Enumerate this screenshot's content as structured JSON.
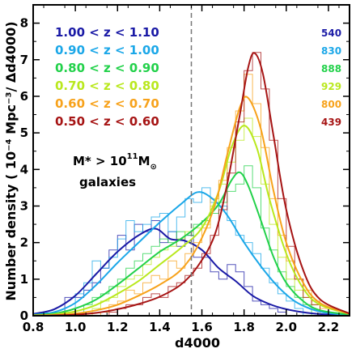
{
  "chart_data": {
    "type": "line",
    "xlabel": "d4000",
    "ylabel": "Number density ( 10⁻⁴ Mpc⁻³/ Δd4000)",
    "xlim": [
      0.8,
      2.3
    ],
    "ylim": [
      0,
      8.5
    ],
    "xticks": [
      "0.8",
      "1.0",
      "1.2",
      "1.4",
      "1.6",
      "1.8",
      "2.0",
      "2.2"
    ],
    "yticks": [
      "0",
      "1",
      "2",
      "3",
      "4",
      "5",
      "6",
      "7",
      "8"
    ],
    "vline_x": 1.55,
    "annotation": {
      "line1_prefix": "M* > 10",
      "line1_exp": "11",
      "line1_suffix": "M",
      "line1_sun": "⊙",
      "line2": "galaxies"
    },
    "series": [
      {
        "name": "1.00 < z < 1.10",
        "count": "540",
        "color": "#1a1aa6",
        "x": [
          0.8,
          0.9,
          1.0,
          1.1,
          1.2,
          1.3,
          1.38,
          1.45,
          1.52,
          1.6,
          1.68,
          1.76,
          1.84,
          1.92,
          2.0,
          2.1,
          2.2,
          2.3
        ],
        "y": [
          0.05,
          0.18,
          0.55,
          1.15,
          1.75,
          2.2,
          2.38,
          2.1,
          2.05,
          1.8,
          1.3,
          0.95,
          0.55,
          0.32,
          0.18,
          0.08,
          0.03,
          0.01
        ],
        "hx": [
          0.95,
          1.0,
          1.04,
          1.08,
          1.12,
          1.16,
          1.2,
          1.24,
          1.28,
          1.32,
          1.36,
          1.4,
          1.44,
          1.48,
          1.52,
          1.56,
          1.6,
          1.64,
          1.68,
          1.72,
          1.76,
          1.8,
          1.84,
          1.88,
          1.92,
          1.96,
          2.0
        ],
        "hy": [
          0.5,
          0.5,
          0.7,
          0.9,
          1.3,
          1.8,
          2.2,
          1.8,
          2.5,
          2.3,
          2.6,
          2.0,
          2.3,
          1.9,
          2.2,
          1.6,
          1.6,
          1.2,
          1.0,
          1.4,
          1.2,
          0.8,
          0.4,
          0.3,
          0.2,
          0.1,
          0.0
        ]
      },
      {
        "name": "0.90 < z < 1.00",
        "count": "830",
        "color": "#1ba7e8",
        "x": [
          0.8,
          0.9,
          1.0,
          1.1,
          1.2,
          1.3,
          1.4,
          1.5,
          1.58,
          1.65,
          1.72,
          1.8,
          1.88,
          1.96,
          2.04,
          2.12,
          2.2,
          2.3
        ],
        "y": [
          0.03,
          0.1,
          0.35,
          0.85,
          1.45,
          2.0,
          2.55,
          3.05,
          3.38,
          3.2,
          2.75,
          2.0,
          1.35,
          0.8,
          0.4,
          0.18,
          0.07,
          0.02
        ],
        "hx": [
          1.0,
          1.04,
          1.08,
          1.12,
          1.16,
          1.2,
          1.24,
          1.28,
          1.32,
          1.36,
          1.4,
          1.44,
          1.48,
          1.52,
          1.56,
          1.6,
          1.64,
          1.68,
          1.72,
          1.76,
          1.8,
          1.84,
          1.88,
          1.92,
          1.96,
          2.0,
          2.04
        ],
        "hy": [
          0.6,
          0.9,
          1.5,
          1.3,
          1.6,
          2.1,
          2.6,
          2.3,
          2.5,
          2.7,
          2.8,
          2.3,
          2.7,
          3.2,
          3.1,
          3.5,
          3.1,
          3.0,
          2.6,
          2.2,
          2.0,
          1.7,
          1.3,
          0.9,
          0.6,
          0.4,
          0.2
        ]
      },
      {
        "name": "0.80 < z < 0.90",
        "count": "888",
        "color": "#22d14a",
        "x": [
          0.8,
          0.9,
          1.0,
          1.1,
          1.2,
          1.3,
          1.4,
          1.5,
          1.6,
          1.68,
          1.74,
          1.78,
          1.82,
          1.88,
          1.94,
          2.0,
          2.08,
          2.16,
          2.3
        ],
        "y": [
          0.02,
          0.06,
          0.2,
          0.45,
          0.85,
          1.3,
          1.75,
          2.1,
          2.55,
          3.05,
          3.7,
          3.92,
          3.55,
          2.6,
          1.6,
          0.9,
          0.4,
          0.15,
          0.03
        ],
        "hx": [
          1.04,
          1.08,
          1.12,
          1.16,
          1.2,
          1.24,
          1.28,
          1.32,
          1.36,
          1.4,
          1.44,
          1.48,
          1.52,
          1.56,
          1.6,
          1.64,
          1.68,
          1.72,
          1.76,
          1.8,
          1.84,
          1.88,
          1.92,
          1.96,
          2.0,
          2.04,
          2.08
        ],
        "hy": [
          0.3,
          0.5,
          0.6,
          0.8,
          1.0,
          1.3,
          1.5,
          1.7,
          1.9,
          2.1,
          2.0,
          2.3,
          2.2,
          2.5,
          2.6,
          2.8,
          3.1,
          3.4,
          3.6,
          4.1,
          3.5,
          2.4,
          1.8,
          1.2,
          0.8,
          0.5,
          0.3
        ]
      },
      {
        "name": "0.70 < z < 0.80",
        "count": "929",
        "color": "#b9e81d",
        "x": [
          0.8,
          0.9,
          1.0,
          1.1,
          1.2,
          1.3,
          1.4,
          1.5,
          1.6,
          1.68,
          1.74,
          1.8,
          1.86,
          1.92,
          2.0,
          2.08,
          2.16,
          2.3
        ],
        "y": [
          0.01,
          0.04,
          0.12,
          0.3,
          0.6,
          0.95,
          1.4,
          1.85,
          2.4,
          3.4,
          4.6,
          5.2,
          4.6,
          3.2,
          1.7,
          0.75,
          0.3,
          0.05
        ],
        "hx": [
          1.08,
          1.12,
          1.16,
          1.2,
          1.24,
          1.28,
          1.32,
          1.36,
          1.4,
          1.44,
          1.48,
          1.52,
          1.56,
          1.6,
          1.64,
          1.68,
          1.72,
          1.76,
          1.8,
          1.84,
          1.88,
          1.92,
          1.96,
          2.0,
          2.04,
          2.08,
          2.12
        ],
        "hy": [
          0.2,
          0.4,
          0.5,
          0.8,
          1.0,
          1.1,
          1.4,
          1.6,
          1.8,
          1.9,
          2.1,
          2.3,
          2.4,
          2.5,
          3.0,
          3.6,
          4.2,
          4.8,
          5.4,
          4.9,
          3.6,
          2.5,
          1.6,
          1.0,
          0.7,
          0.5,
          0.3
        ]
      },
      {
        "name": "0.60 < z < 0.70",
        "count": "800",
        "color": "#f7a21b",
        "x": [
          0.8,
          0.9,
          1.0,
          1.1,
          1.2,
          1.3,
          1.4,
          1.5,
          1.58,
          1.66,
          1.72,
          1.78,
          1.82,
          1.88,
          1.94,
          2.0,
          2.08,
          2.16,
          2.3
        ],
        "y": [
          0.01,
          0.02,
          0.06,
          0.15,
          0.3,
          0.55,
          0.85,
          1.25,
          1.9,
          3.0,
          4.4,
          5.7,
          5.95,
          5.1,
          3.4,
          2.0,
          0.9,
          0.35,
          0.05
        ],
        "hx": [
          1.12,
          1.16,
          1.2,
          1.24,
          1.28,
          1.32,
          1.36,
          1.4,
          1.44,
          1.48,
          1.52,
          1.56,
          1.6,
          1.64,
          1.68,
          1.72,
          1.76,
          1.8,
          1.84,
          1.88,
          1.92,
          1.96,
          2.0,
          2.04,
          2.08,
          2.12,
          2.16
        ],
        "hy": [
          0.1,
          0.3,
          0.4,
          0.7,
          0.6,
          0.9,
          1.1,
          1.0,
          1.5,
          1.3,
          1.7,
          2.0,
          2.4,
          3.2,
          3.7,
          4.6,
          5.6,
          6.6,
          5.8,
          4.6,
          3.2,
          2.2,
          1.5,
          1.0,
          0.7,
          0.4,
          0.2
        ]
      },
      {
        "name": "0.50 < z < 0.60",
        "count": "439",
        "color": "#a61414",
        "x": [
          0.8,
          0.9,
          1.0,
          1.1,
          1.2,
          1.3,
          1.4,
          1.5,
          1.58,
          1.66,
          1.72,
          1.78,
          1.82,
          1.85,
          1.89,
          1.94,
          2.0,
          2.08,
          2.16,
          2.3
        ],
        "y": [
          0.0,
          0.01,
          0.03,
          0.08,
          0.18,
          0.32,
          0.52,
          0.85,
          1.35,
          2.2,
          3.6,
          5.5,
          6.8,
          7.18,
          6.6,
          4.9,
          2.9,
          1.25,
          0.45,
          0.06
        ],
        "hx": [
          1.16,
          1.2,
          1.24,
          1.28,
          1.32,
          1.36,
          1.4,
          1.44,
          1.48,
          1.52,
          1.56,
          1.6,
          1.64,
          1.68,
          1.72,
          1.76,
          1.8,
          1.84,
          1.88,
          1.92,
          1.96,
          2.0,
          2.04,
          2.08,
          2.12,
          2.16
        ],
        "hy": [
          0.1,
          0.2,
          0.3,
          0.3,
          0.5,
          0.6,
          0.5,
          0.8,
          0.9,
          1.1,
          1.3,
          1.7,
          2.2,
          2.9,
          3.9,
          5.3,
          6.7,
          7.2,
          6.2,
          4.8,
          3.2,
          1.9,
          1.0,
          0.5,
          0.3,
          0.1
        ]
      }
    ]
  }
}
